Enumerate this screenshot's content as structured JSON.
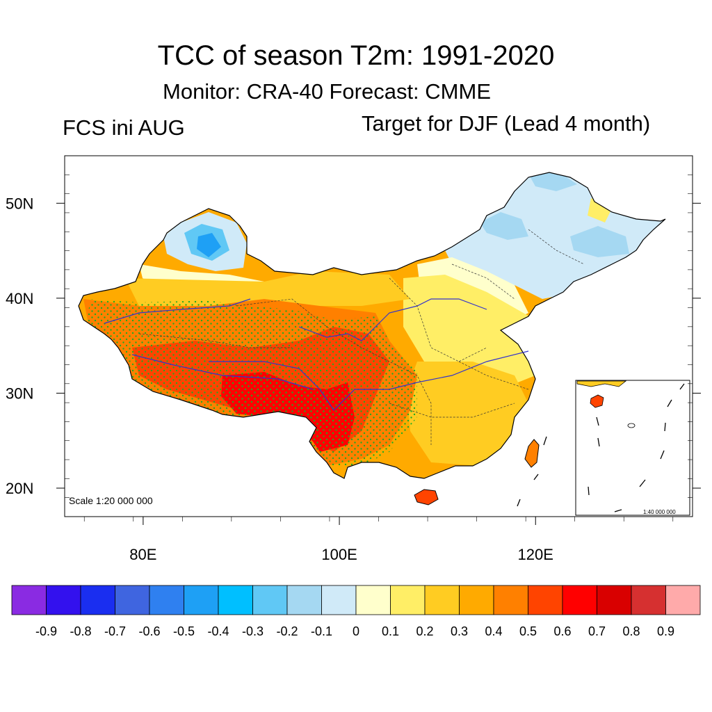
{
  "title": "TCC of season T2m: 1991-2020",
  "subtitle": "Monitor: CRA-40   Forecast: CMME",
  "left_label": "FCS ini AUG",
  "right_label": "Target for DJF (Lead 4 month)",
  "scale_main": "Scale 1:20 000 000",
  "scale_inset": "1:40 000 000",
  "axes": {
    "lat_ticks": [
      {
        "value": 50,
        "label": "50N"
      },
      {
        "value": 40,
        "label": "40N"
      },
      {
        "value": 30,
        "label": "30N"
      },
      {
        "value": 20,
        "label": "20N"
      }
    ],
    "lon_ticks": [
      {
        "value": 80,
        "label": "80E"
      },
      {
        "value": 100,
        "label": "100E"
      },
      {
        "value": 120,
        "label": "120E"
      }
    ],
    "lon_range": [
      72,
      136
    ],
    "lat_range": [
      17,
      55
    ]
  },
  "colorbar": {
    "colors": [
      "#8a2be2",
      "#3311ee",
      "#1a2ef0",
      "#3f65e0",
      "#2f80f0",
      "#1ea0f5",
      "#00bfff",
      "#60c8f5",
      "#a5d8f2",
      "#d0eaf8",
      "#ffffcc",
      "#ffee66",
      "#ffcc22",
      "#ffaa00",
      "#ff8000",
      "#ff4400",
      "#ff0000",
      "#d90000",
      "#d63030",
      "#ffaaaa"
    ],
    "labels": [
      "-0.9",
      "-0.8",
      "-0.7",
      "-0.6",
      "-0.5",
      "-0.4",
      "-0.3",
      "-0.2",
      "-0.1",
      "0",
      "0.1",
      "0.2",
      "0.3",
      "0.4",
      "0.5",
      "0.6",
      "0.7",
      "0.8",
      "0.9"
    ]
  },
  "map_colors": {
    "blue_strong": "#60c8f5",
    "blue_light": "#d0eaf8",
    "yellow_pale": "#ffffcc",
    "yellow": "#ffee66",
    "gold": "#ffcc22",
    "orange": "#ffaa00",
    "orange_dark": "#ff8000",
    "red_orange": "#ff4400",
    "red": "#ff0000",
    "stipple": "#22aa22",
    "river": "#3333cc",
    "border": "#000000"
  }
}
